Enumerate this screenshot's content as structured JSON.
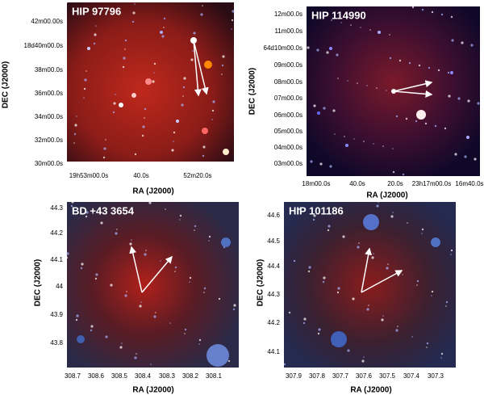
{
  "panels": [
    {
      "title": "HIP 97796",
      "x_label": "RA (J2000)",
      "y_label": "DEC (J2000)",
      "x_ticks": [
        "19h53m00.0s",
        "40.0s",
        "52m20.0s"
      ],
      "y_ticks": [
        "42m00.00s",
        "18d40m00.0s",
        "38m00.0s",
        "36m00.0s",
        "34m00.0s",
        "32m00.0s",
        "30m00.0s"
      ]
    },
    {
      "title": "HIP 114990",
      "x_label": "RA (J2000)",
      "y_label": "DEC (J2000)",
      "x_ticks": [
        "18m00.0s",
        "40.0s",
        "20.0s",
        "23h17m00.0s",
        "16m40.0s"
      ],
      "y_ticks": [
        "12m00.0s",
        "11m00.0s",
        "64d10m00.0s",
        "09m00.0s",
        "08m00.0s",
        "07m00.0s",
        "06m00.0s",
        "05m00.0s",
        "04m00.0s",
        "03m00.0s"
      ]
    },
    {
      "title": "BD +43 3654",
      "x_label": "RA (J2000)",
      "y_label": "DEC (J2000)",
      "x_ticks": [
        "308.7",
        "308.6",
        "308.5",
        "308.4",
        "308.3",
        "308.2",
        "308.1"
      ],
      "y_ticks": [
        "44.3",
        "44.2",
        "44.1",
        "44",
        "43.9",
        "43.8"
      ]
    },
    {
      "title": "HIP 101186",
      "x_label": "RA (J2000)",
      "y_label": "DEC (J2000)",
      "x_ticks": [
        "307.9",
        "307.8",
        "307.7",
        "307.6",
        "307.5",
        "307.4",
        "307.3"
      ],
      "y_ticks": [
        "44.6",
        "44.5",
        "44.4",
        "44.3",
        "44.2",
        "44.1"
      ]
    }
  ]
}
